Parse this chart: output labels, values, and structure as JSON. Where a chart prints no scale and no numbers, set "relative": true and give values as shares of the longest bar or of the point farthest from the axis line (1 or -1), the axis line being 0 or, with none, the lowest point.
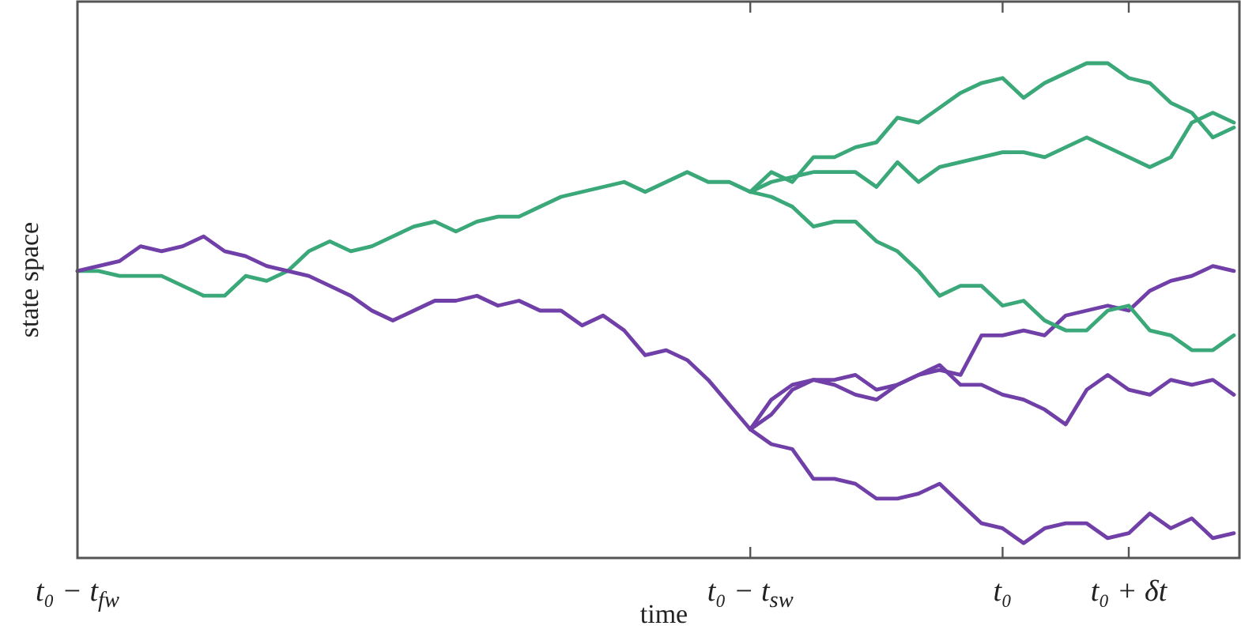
{
  "chart_data": {
    "type": "line",
    "relative": true,
    "xlabel": "time",
    "ylabel": "state space",
    "categories": [
      "t₀ − t$_{fw}$",
      null,
      null,
      null,
      null,
      null,
      null,
      null,
      null,
      null,
      null,
      null,
      null,
      null,
      null,
      null,
      null,
      null,
      null,
      null,
      null,
      null,
      null,
      null,
      null,
      null,
      null,
      null,
      null,
      null,
      null,
      null,
      "t₀ − t$_{sw}$",
      null,
      null,
      null,
      null,
      null,
      null,
      null,
      null,
      null,
      null,
      null,
      "t₀",
      null,
      null,
      null,
      null,
      null,
      "t₀ + δt",
      null,
      null,
      null,
      null,
      null
    ],
    "series": [
      {
        "color": "#3aa878",
        "values": [
          0.58,
          0.58,
          0.57,
          0.57,
          0.57,
          0.55,
          0.53,
          0.53,
          0.57,
          0.56,
          0.58,
          0.62,
          0.64,
          0.62,
          0.63,
          0.65,
          0.67,
          0.68,
          0.66,
          0.68,
          0.69,
          0.69,
          0.71,
          0.73,
          0.74,
          0.75,
          0.76,
          0.74,
          0.76,
          0.78,
          0.76,
          0.76,
          0.74,
          0.78,
          0.76,
          0.81,
          0.81,
          0.83,
          0.84,
          0.89,
          0.88,
          0.91,
          0.94,
          0.96,
          0.97,
          0.93,
          0.96,
          0.98,
          1.0,
          1.0,
          0.97,
          0.96,
          0.92,
          0.9,
          0.85,
          0.87
        ]
      },
      {
        "color": "#7040a8",
        "values": [
          0.58,
          0.59,
          0.6,
          0.63,
          0.62,
          0.63,
          0.65,
          0.62,
          0.61,
          0.59,
          0.58,
          0.57,
          0.55,
          0.53,
          0.5,
          0.48,
          0.5,
          0.52,
          0.52,
          0.53,
          0.51,
          0.52,
          0.5,
          0.5,
          0.47,
          0.49,
          0.46,
          0.41,
          0.42,
          0.4,
          0.36,
          0.31,
          0.26,
          0.32,
          0.35,
          0.36,
          0.36,
          0.37,
          0.34,
          0.35,
          0.37,
          0.38,
          0.37,
          0.45,
          0.45,
          0.46,
          0.45,
          0.49,
          0.5,
          0.51,
          0.5,
          0.54,
          0.56,
          0.57,
          0.59,
          0.58
        ]
      },
      {
        "color": "#3aa878",
        "values": [
          null,
          null,
          null,
          null,
          null,
          null,
          null,
          null,
          null,
          null,
          null,
          null,
          null,
          null,
          null,
          null,
          null,
          null,
          null,
          null,
          null,
          null,
          null,
          null,
          null,
          null,
          null,
          null,
          null,
          null,
          null,
          null,
          0.74,
          0.76,
          0.77,
          0.78,
          0.78,
          0.78,
          0.75,
          0.8,
          0.76,
          0.79,
          0.8,
          0.81,
          0.82,
          0.82,
          0.81,
          0.83,
          0.85,
          0.83,
          0.81,
          0.79,
          0.81,
          0.88,
          0.9,
          0.88
        ]
      },
      {
        "color": "#3aa878",
        "values": [
          null,
          null,
          null,
          null,
          null,
          null,
          null,
          null,
          null,
          null,
          null,
          null,
          null,
          null,
          null,
          null,
          null,
          null,
          null,
          null,
          null,
          null,
          null,
          null,
          null,
          null,
          null,
          null,
          null,
          null,
          null,
          null,
          0.74,
          0.73,
          0.71,
          0.67,
          0.68,
          0.68,
          0.64,
          0.62,
          0.58,
          0.53,
          0.55,
          0.55,
          0.51,
          0.52,
          0.48,
          0.46,
          0.46,
          0.5,
          0.51,
          0.46,
          0.45,
          0.42,
          0.42,
          0.45
        ]
      },
      {
        "color": "#7040a8",
        "values": [
          null,
          null,
          null,
          null,
          null,
          null,
          null,
          null,
          null,
          null,
          null,
          null,
          null,
          null,
          null,
          null,
          null,
          null,
          null,
          null,
          null,
          null,
          null,
          null,
          null,
          null,
          null,
          null,
          null,
          null,
          null,
          null,
          0.26,
          0.29,
          0.34,
          0.36,
          0.35,
          0.33,
          0.32,
          0.35,
          0.37,
          0.39,
          0.35,
          0.35,
          0.33,
          0.32,
          0.3,
          0.27,
          0.34,
          0.37,
          0.34,
          0.33,
          0.36,
          0.35,
          0.36,
          0.33
        ]
      },
      {
        "color": "#7040a8",
        "values": [
          null,
          null,
          null,
          null,
          null,
          null,
          null,
          null,
          null,
          null,
          null,
          null,
          null,
          null,
          null,
          null,
          null,
          null,
          null,
          null,
          null,
          null,
          null,
          null,
          null,
          null,
          null,
          null,
          null,
          null,
          null,
          null,
          0.26,
          0.23,
          0.22,
          0.16,
          0.16,
          0.15,
          0.12,
          0.12,
          0.13,
          0.15,
          0.11,
          0.07,
          0.06,
          0.03,
          0.06,
          0.07,
          0.07,
          0.04,
          0.05,
          0.09,
          0.06,
          0.08,
          0.04,
          0.05
        ]
      }
    ]
  }
}
